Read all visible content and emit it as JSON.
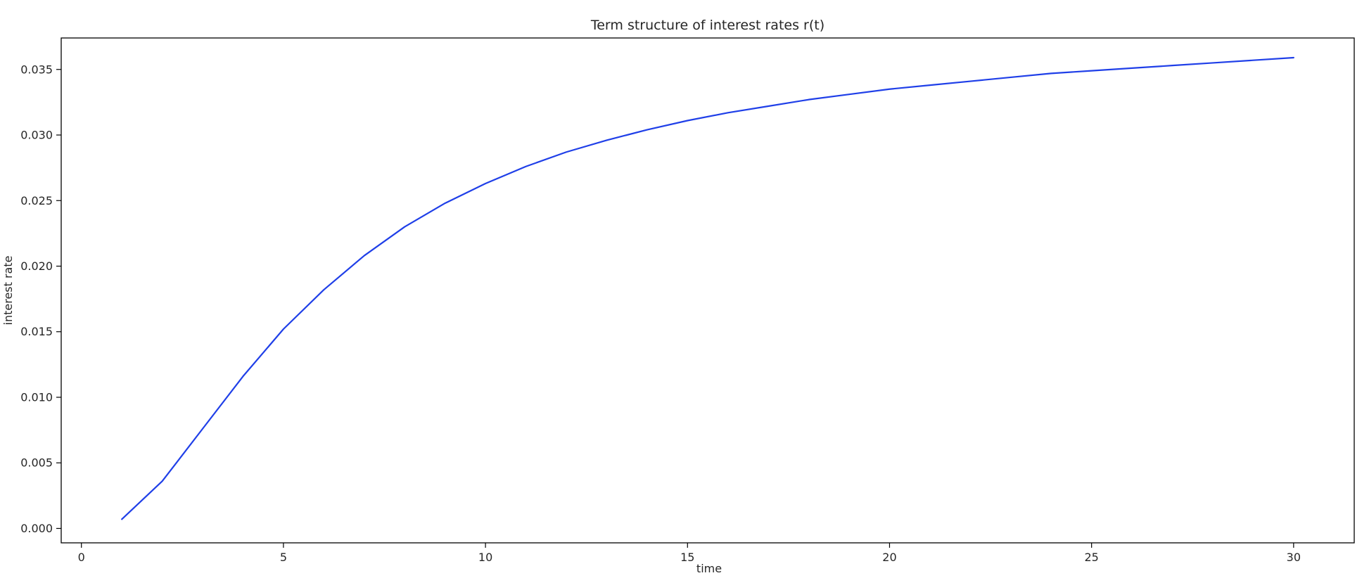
{
  "chart_data": {
    "type": "line",
    "title": "Term structure of interest rates r(t)",
    "xlabel": "time",
    "ylabel": "interest rate",
    "xlim": [
      -0.5,
      31.5
    ],
    "ylim": [
      -0.0011,
      0.0374
    ],
    "x_ticks": [
      0,
      5,
      10,
      15,
      20,
      25,
      30
    ],
    "x_tick_labels": [
      "0",
      "5",
      "10",
      "15",
      "20",
      "25",
      "30"
    ],
    "y_ticks": [
      0.0,
      0.005,
      0.01,
      0.015,
      0.02,
      0.025,
      0.03,
      0.035
    ],
    "y_tick_labels": [
      "0.000",
      "0.005",
      "0.010",
      "0.015",
      "0.020",
      "0.025",
      "0.030",
      "0.035"
    ],
    "grid": false,
    "legend": "none",
    "series": [
      {
        "color": "#1f3fe8",
        "x": [
          1,
          2,
          3,
          4,
          5,
          6,
          7,
          8,
          9,
          10,
          11,
          12,
          13,
          14,
          15,
          16,
          17,
          18,
          19,
          20,
          21,
          22,
          23,
          24,
          25,
          26,
          27,
          28,
          29,
          30
        ],
        "y": [
          0.0007,
          0.0036,
          0.0076,
          0.0116,
          0.0152,
          0.0182,
          0.0208,
          0.023,
          0.0248,
          0.0263,
          0.0276,
          0.0287,
          0.0296,
          0.0304,
          0.0311,
          0.0317,
          0.0322,
          0.0327,
          0.0331,
          0.0335,
          0.0338,
          0.0341,
          0.0344,
          0.0347,
          0.0349,
          0.0351,
          0.0353,
          0.0355,
          0.0357,
          0.0359
        ]
      }
    ]
  }
}
